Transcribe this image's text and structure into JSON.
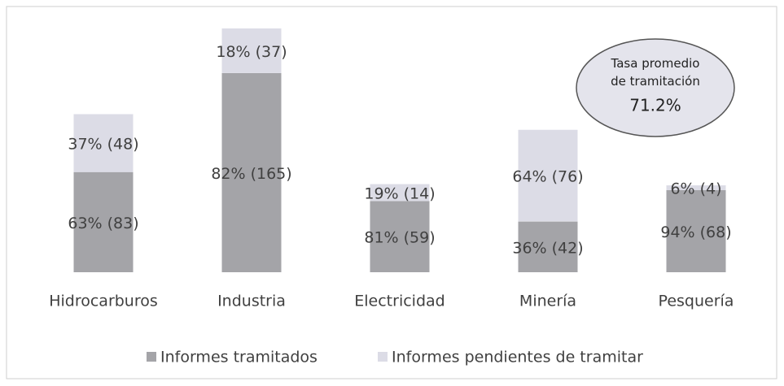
{
  "chart_data": {
    "type": "stacked-bar",
    "categories": [
      "Hidrocarburos",
      "Industria",
      "Electricidad",
      "Minería",
      "Pesquería"
    ],
    "series": [
      {
        "name": "Informes tramitados",
        "color": "#a4a4a8",
        "values": [
          83,
          165,
          59,
          42,
          68
        ],
        "value_labels": [
          "63% (83)",
          "82% (165)",
          "81% (59)",
          "36% (42)",
          "94% (68)"
        ]
      },
      {
        "name": "Informes pendientes de tramitar",
        "color": "#dcdce6",
        "values": [
          48,
          37,
          14,
          76,
          4
        ],
        "value_labels": [
          "37% (48)",
          "18% (37)",
          "19% (14)",
          "64% (76)",
          "6% (4)"
        ]
      }
    ],
    "ylim": [
      0,
      202
    ],
    "annotation": {
      "title": "Tasa promedio de tramitación",
      "value": "71.2%"
    },
    "legend": "bottom"
  }
}
